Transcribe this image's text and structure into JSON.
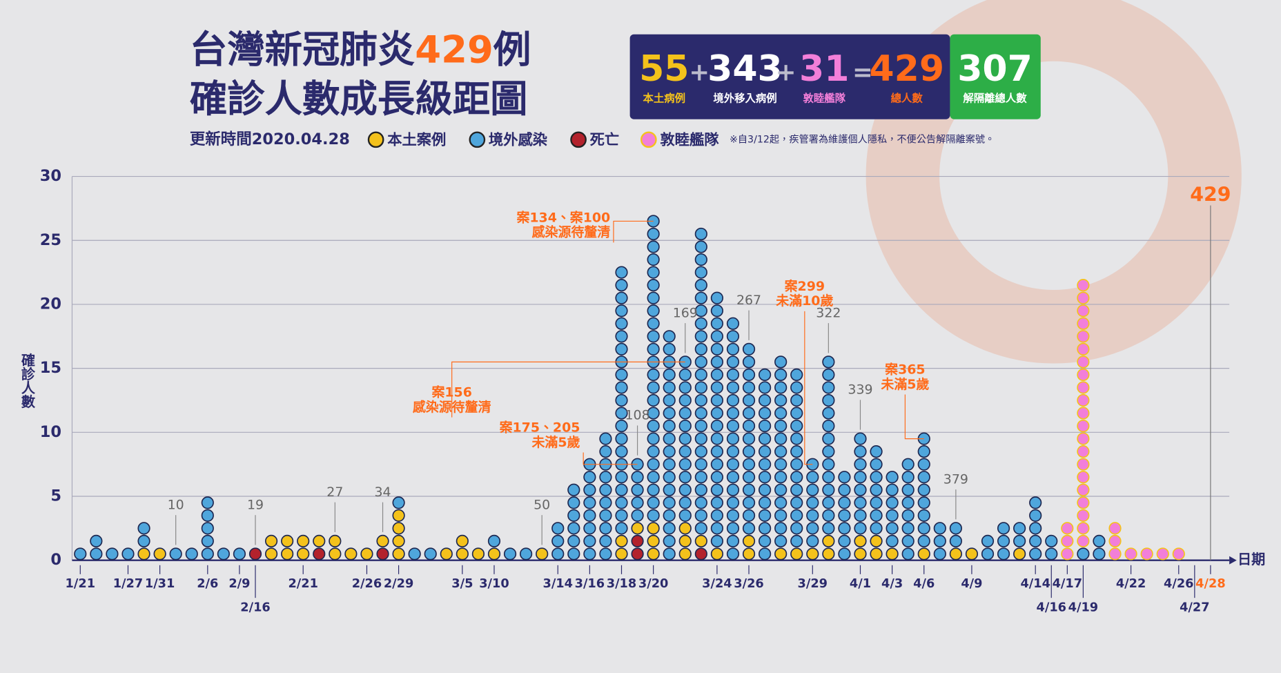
{
  "header": {
    "title_parts": [
      "台灣新冠肺炎",
      "429",
      "例"
    ],
    "title_line2": "確診人數成長級距圖"
  },
  "summary": {
    "items": [
      {
        "value": 55,
        "label": "本土病例"
      },
      {
        "value": 343,
        "label": "境外移入病例"
      },
      {
        "value": 31,
        "label": "敦睦艦隊"
      },
      {
        "value": 429,
        "label": "總人數"
      },
      {
        "value": 307,
        "label": "解隔離總人數"
      }
    ],
    "operators": [
      "+",
      "+",
      "+",
      "="
    ]
  },
  "chart_data": {
    "type": "dot-stack",
    "subtitle": "更新時間2020.04.28",
    "note": "※自3/12起，疾管署為維護個人隱私，不便公告解隔離案號。",
    "y_label": "確診人數",
    "x_label": "日期",
    "ylim": [
      0,
      30
    ],
    "yticks": [
      0,
      5,
      10,
      15,
      20,
      25,
      30
    ],
    "grid": true,
    "categories": [
      "1/21",
      null,
      null,
      "1/27",
      null,
      "1/31",
      null,
      null,
      "2/6",
      null,
      "2/9",
      "2/16",
      null,
      null,
      "2/21",
      null,
      null,
      null,
      "2/26",
      null,
      "2/29",
      null,
      null,
      null,
      "3/5",
      null,
      "3/10",
      null,
      null,
      null,
      "3/14",
      null,
      "3/16",
      null,
      "3/18",
      null,
      "3/20",
      null,
      null,
      null,
      "3/24",
      null,
      "3/26",
      null,
      null,
      null,
      "3/29",
      null,
      null,
      "4/1",
      null,
      "4/3",
      null,
      "4/6",
      null,
      null,
      "4/9",
      null,
      null,
      null,
      "4/14",
      "4/16",
      "4/17",
      "4/19",
      null,
      null,
      "4/22",
      null,
      null,
      "4/26",
      "4/27",
      "4/28"
    ],
    "series": [
      {
        "name": "本土案例",
        "color": "#f4c21b",
        "values": [
          0,
          0,
          0,
          0,
          1,
          1,
          0,
          0,
          0,
          0,
          0,
          0,
          2,
          2,
          2,
          1,
          2,
          1,
          1,
          1,
          4,
          0,
          0,
          1,
          2,
          1,
          1,
          0,
          0,
          1,
          0,
          0,
          0,
          0,
          2,
          1,
          3,
          0,
          3,
          1,
          1,
          0,
          2,
          0,
          1,
          1,
          1,
          2,
          0,
          2,
          2,
          1,
          0,
          1,
          0,
          1,
          1,
          0,
          0,
          1,
          0,
          0,
          0,
          0,
          0,
          0,
          0,
          0,
          0,
          0,
          0,
          0
        ]
      },
      {
        "name": "境外感染",
        "color": "#4fa6dc",
        "values": [
          1,
          2,
          1,
          1,
          2,
          0,
          1,
          1,
          5,
          1,
          1,
          0,
          0,
          0,
          0,
          0,
          0,
          0,
          0,
          0,
          1,
          1,
          1,
          0,
          0,
          0,
          1,
          1,
          1,
          0,
          3,
          6,
          8,
          10,
          21,
          5,
          24,
          18,
          13,
          24,
          20,
          19,
          15,
          15,
          15,
          14,
          7,
          14,
          7,
          8,
          7,
          6,
          8,
          9,
          3,
          2,
          0,
          2,
          3,
          2,
          5,
          2,
          0,
          1,
          2,
          0,
          0,
          0,
          0,
          0,
          0,
          0
        ]
      },
      {
        "name": "死亡",
        "color": "#b3222c",
        "values": [
          0,
          0,
          0,
          0,
          0,
          0,
          0,
          0,
          0,
          0,
          0,
          1,
          0,
          0,
          0,
          1,
          0,
          0,
          0,
          1,
          0,
          0,
          0,
          0,
          0,
          0,
          0,
          0,
          0,
          0,
          0,
          0,
          0,
          0,
          0,
          2,
          0,
          0,
          0,
          1,
          0,
          0,
          0,
          0,
          0,
          0,
          0,
          0,
          0,
          0,
          0,
          0,
          0,
          0,
          0,
          0,
          0,
          0,
          0,
          0,
          0,
          0,
          0,
          0,
          0,
          0,
          0,
          0,
          0,
          0,
          0,
          0
        ]
      },
      {
        "name": "敦睦艦隊",
        "color": "#f27fd9",
        "values": [
          0,
          0,
          0,
          0,
          0,
          0,
          0,
          0,
          0,
          0,
          0,
          0,
          0,
          0,
          0,
          0,
          0,
          0,
          0,
          0,
          0,
          0,
          0,
          0,
          0,
          0,
          0,
          0,
          0,
          0,
          0,
          0,
          0,
          0,
          0,
          0,
          0,
          0,
          0,
          0,
          0,
          0,
          0,
          0,
          0,
          0,
          0,
          0,
          0,
          0,
          0,
          0,
          0,
          0,
          0,
          0,
          0,
          0,
          0,
          0,
          0,
          0,
          3,
          21,
          0,
          3,
          1,
          1,
          1,
          1,
          0,
          0
        ]
      }
    ],
    "cumulative_labels": [
      10,
      19,
      27,
      34,
      50,
      108,
      169,
      267,
      322,
      339,
      379,
      429
    ],
    "notes": [
      [
        "案134、案100",
        "感染源待釐清"
      ],
      [
        "案156",
        "感染源待釐清"
      ],
      [
        "案175、205",
        "未滿5歲"
      ],
      [
        "案299",
        "未滿10歲"
      ],
      [
        "案365",
        "未滿5歲"
      ]
    ]
  }
}
